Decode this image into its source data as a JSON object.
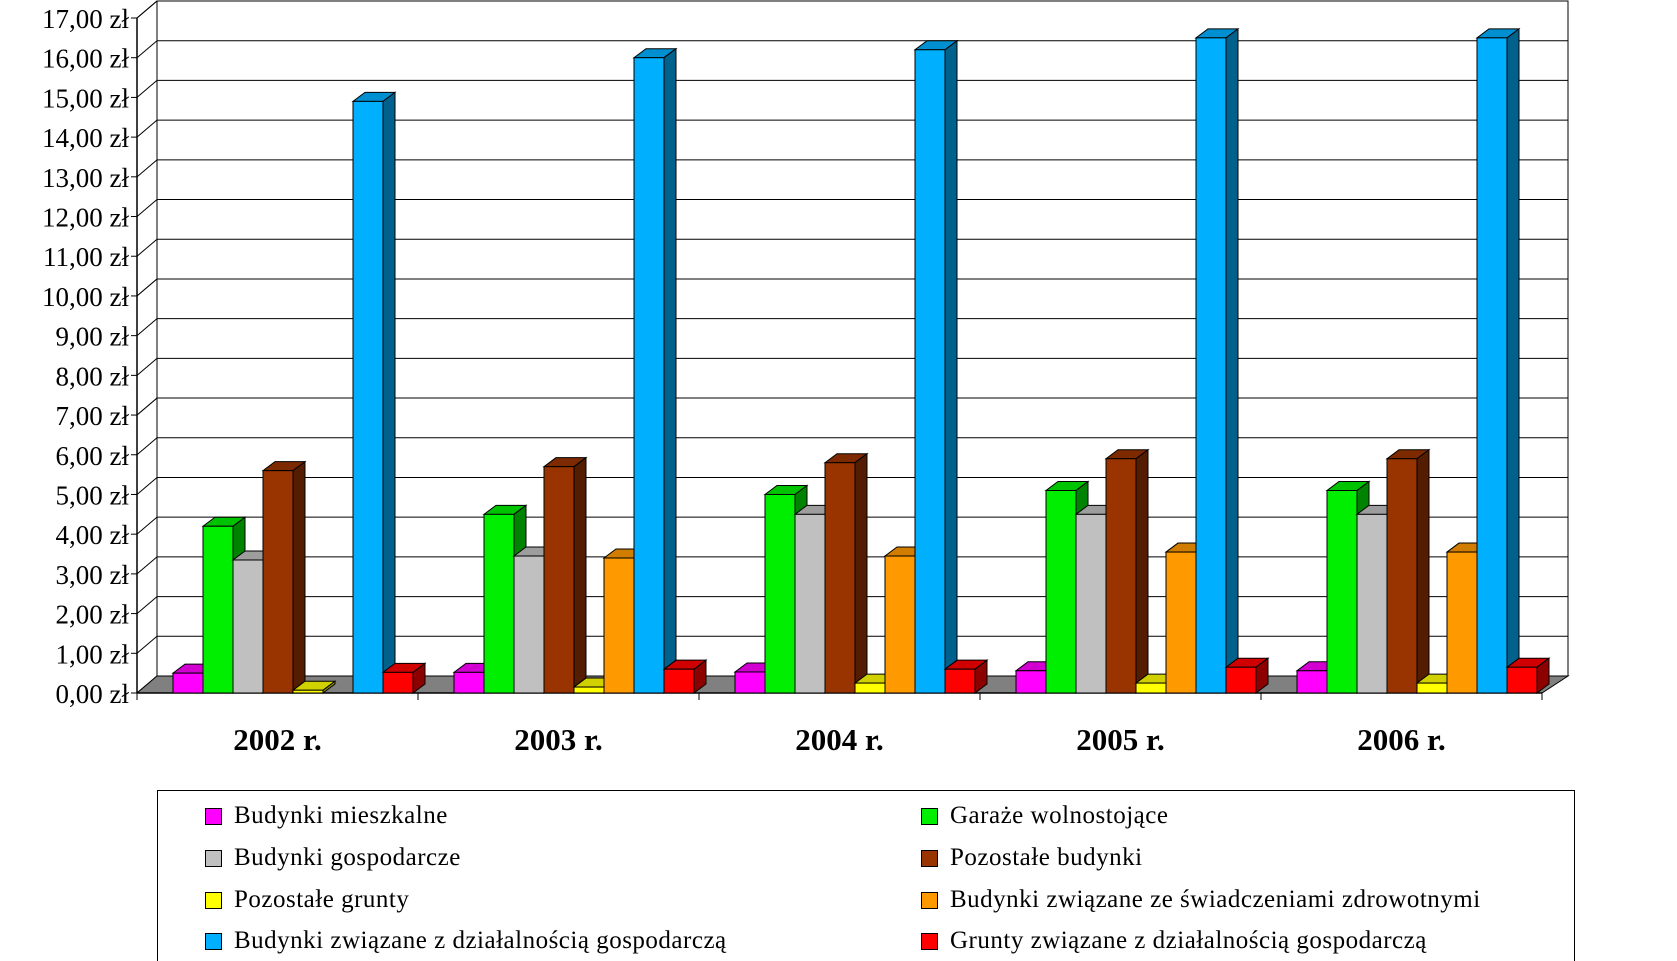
{
  "chart_data": {
    "type": "bar",
    "categories": [
      "2002 r.",
      "2003 r.",
      "2004 r.",
      "2005 r.",
      "2006 r."
    ],
    "ylim": [
      0,
      17
    ],
    "ytick_labels": [
      "0,00 zł",
      "1,00 zł",
      "2,00 zł",
      "3,00 zł",
      "4,00 zł",
      "5,00 zł",
      "6,00 zł",
      "7,00 zł",
      "8,00 zł",
      "9,00 zł",
      "10,00 zł",
      "11,00 zł",
      "12,00 zł",
      "13,00 zł",
      "14,00 zł",
      "15,00 zł",
      "16,00 zł",
      "17,00 zł"
    ],
    "grid": true,
    "legend_position": "bottom",
    "series": [
      {
        "name": "Budynki mieszkalne",
        "color": "#ff00ff",
        "values": [
          0.5,
          0.52,
          0.53,
          0.56,
          0.56
        ]
      },
      {
        "name": "Garaże wolnostojące",
        "color": "#00ee00",
        "values": [
          4.2,
          4.5,
          5.0,
          5.1,
          5.1
        ]
      },
      {
        "name": "Budynki gospodarcze",
        "color": "#c0c0c0",
        "values": [
          3.35,
          3.45,
          4.5,
          4.5,
          4.5
        ]
      },
      {
        "name": "Pozostałe budynki",
        "color": "#993300",
        "values": [
          5.6,
          5.7,
          5.8,
          5.9,
          5.9
        ]
      },
      {
        "name": "Pozostałe grunty",
        "color": "#ffff00",
        "values": [
          0.07,
          0.15,
          0.25,
          0.25,
          0.25
        ]
      },
      {
        "name": "Budynki związane ze świadczeniami zdrowotnymi",
        "color": "#ff9900",
        "values": [
          0.0,
          3.4,
          3.45,
          3.55,
          3.55
        ]
      },
      {
        "name": "Budynki związane z działalnością gospodarczą",
        "color": "#00b0ff",
        "values": [
          14.9,
          16.0,
          16.2,
          16.5,
          16.5
        ]
      },
      {
        "name": "Grunty związane z działalnością gospodarczą",
        "color": "#ff0000",
        "values": [
          0.52,
          0.6,
          0.6,
          0.65,
          0.65
        ]
      }
    ]
  }
}
